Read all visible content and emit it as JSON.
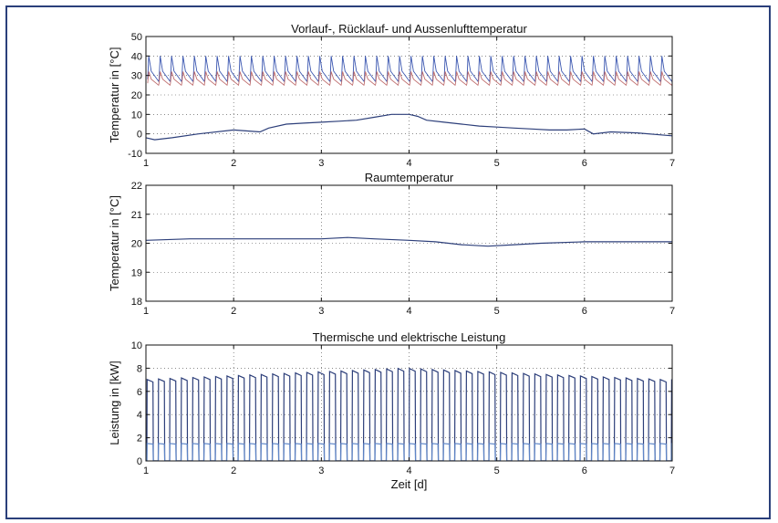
{
  "figure": {
    "xlabel": "Zeit [d]",
    "border_color": "#2a3f7a"
  },
  "chart_data": [
    {
      "type": "line",
      "title": "Vorlauf-, Rücklauf- und Aussenlufttemperatur",
      "xlabel": "",
      "ylabel": "Temperatur in [°C]",
      "xlim": [
        1,
        7
      ],
      "ylim": [
        -10,
        50
      ],
      "xticks": [
        1,
        2,
        3,
        4,
        5,
        6,
        7
      ],
      "yticks": [
        -10,
        0,
        10,
        20,
        30,
        40,
        50
      ],
      "grid": true,
      "cycle_period_days": 0.13,
      "series": [
        {
          "role": "supply",
          "color": "#3a56b0",
          "pattern": "periodic-peaks",
          "base": 28,
          "peak": 40
        },
        {
          "role": "return",
          "color": "#c07070",
          "pattern": "periodic-peaks",
          "base": 26,
          "peak": 32
        },
        {
          "role": "outdoor",
          "color": "#2d3f7a",
          "x": [
            1,
            1.1,
            1.3,
            1.6,
            2,
            2.3,
            2.4,
            2.6,
            2.8,
            3,
            3.2,
            3.4,
            3.6,
            3.8,
            4,
            4.1,
            4.2,
            4.4,
            4.6,
            4.8,
            5,
            5.2,
            5.4,
            5.6,
            5.8,
            6,
            6.1,
            6.3,
            6.6,
            7
          ],
          "y": [
            -2,
            -3,
            -2,
            0,
            2,
            1,
            3,
            5,
            5.5,
            6,
            6.5,
            7,
            8.5,
            10,
            10,
            9,
            7,
            6,
            5,
            4,
            3.5,
            3,
            2.5,
            2,
            2,
            2.5,
            0,
            1,
            0.5,
            -1
          ]
        }
      ]
    },
    {
      "type": "line",
      "title": "Raumtemperatur",
      "xlabel": "",
      "ylabel": "Temperatur in [°C]",
      "xlim": [
        1,
        7
      ],
      "ylim": [
        18,
        22
      ],
      "xticks": [
        1,
        2,
        3,
        4,
        5,
        6,
        7
      ],
      "yticks": [
        18,
        19,
        20,
        21,
        22
      ],
      "grid": true,
      "series": [
        {
          "role": "room",
          "color": "#2d3f7a",
          "x": [
            1,
            1.5,
            2,
            2.5,
            3,
            3.3,
            3.6,
            4,
            4.3,
            4.6,
            4.9,
            5.2,
            5.5,
            6,
            6.5,
            7
          ],
          "y": [
            20.1,
            20.15,
            20.15,
            20.15,
            20.15,
            20.2,
            20.15,
            20.1,
            20.05,
            19.95,
            19.9,
            19.95,
            20,
            20.05,
            20.05,
            20.05
          ]
        }
      ]
    },
    {
      "type": "line",
      "title": "Thermische und elektrische Leistung",
      "xlabel": "Zeit [d]",
      "ylabel": "Leistung in [kW]",
      "xlim": [
        1,
        7
      ],
      "ylim": [
        0,
        10
      ],
      "xticks": [
        1,
        2,
        3,
        4,
        5,
        6,
        7
      ],
      "yticks": [
        0,
        2,
        4,
        6,
        8,
        10
      ],
      "grid": true,
      "cycle_period_days": 0.13,
      "series": [
        {
          "role": "thermal",
          "color": "#2d3f7a",
          "pattern": "on-off-pulses",
          "on_value_range": [
            7,
            8
          ]
        },
        {
          "role": "electrical",
          "color": "#5f86c8",
          "pattern": "on-off-pulses",
          "on_value": 1.5
        }
      ]
    }
  ]
}
